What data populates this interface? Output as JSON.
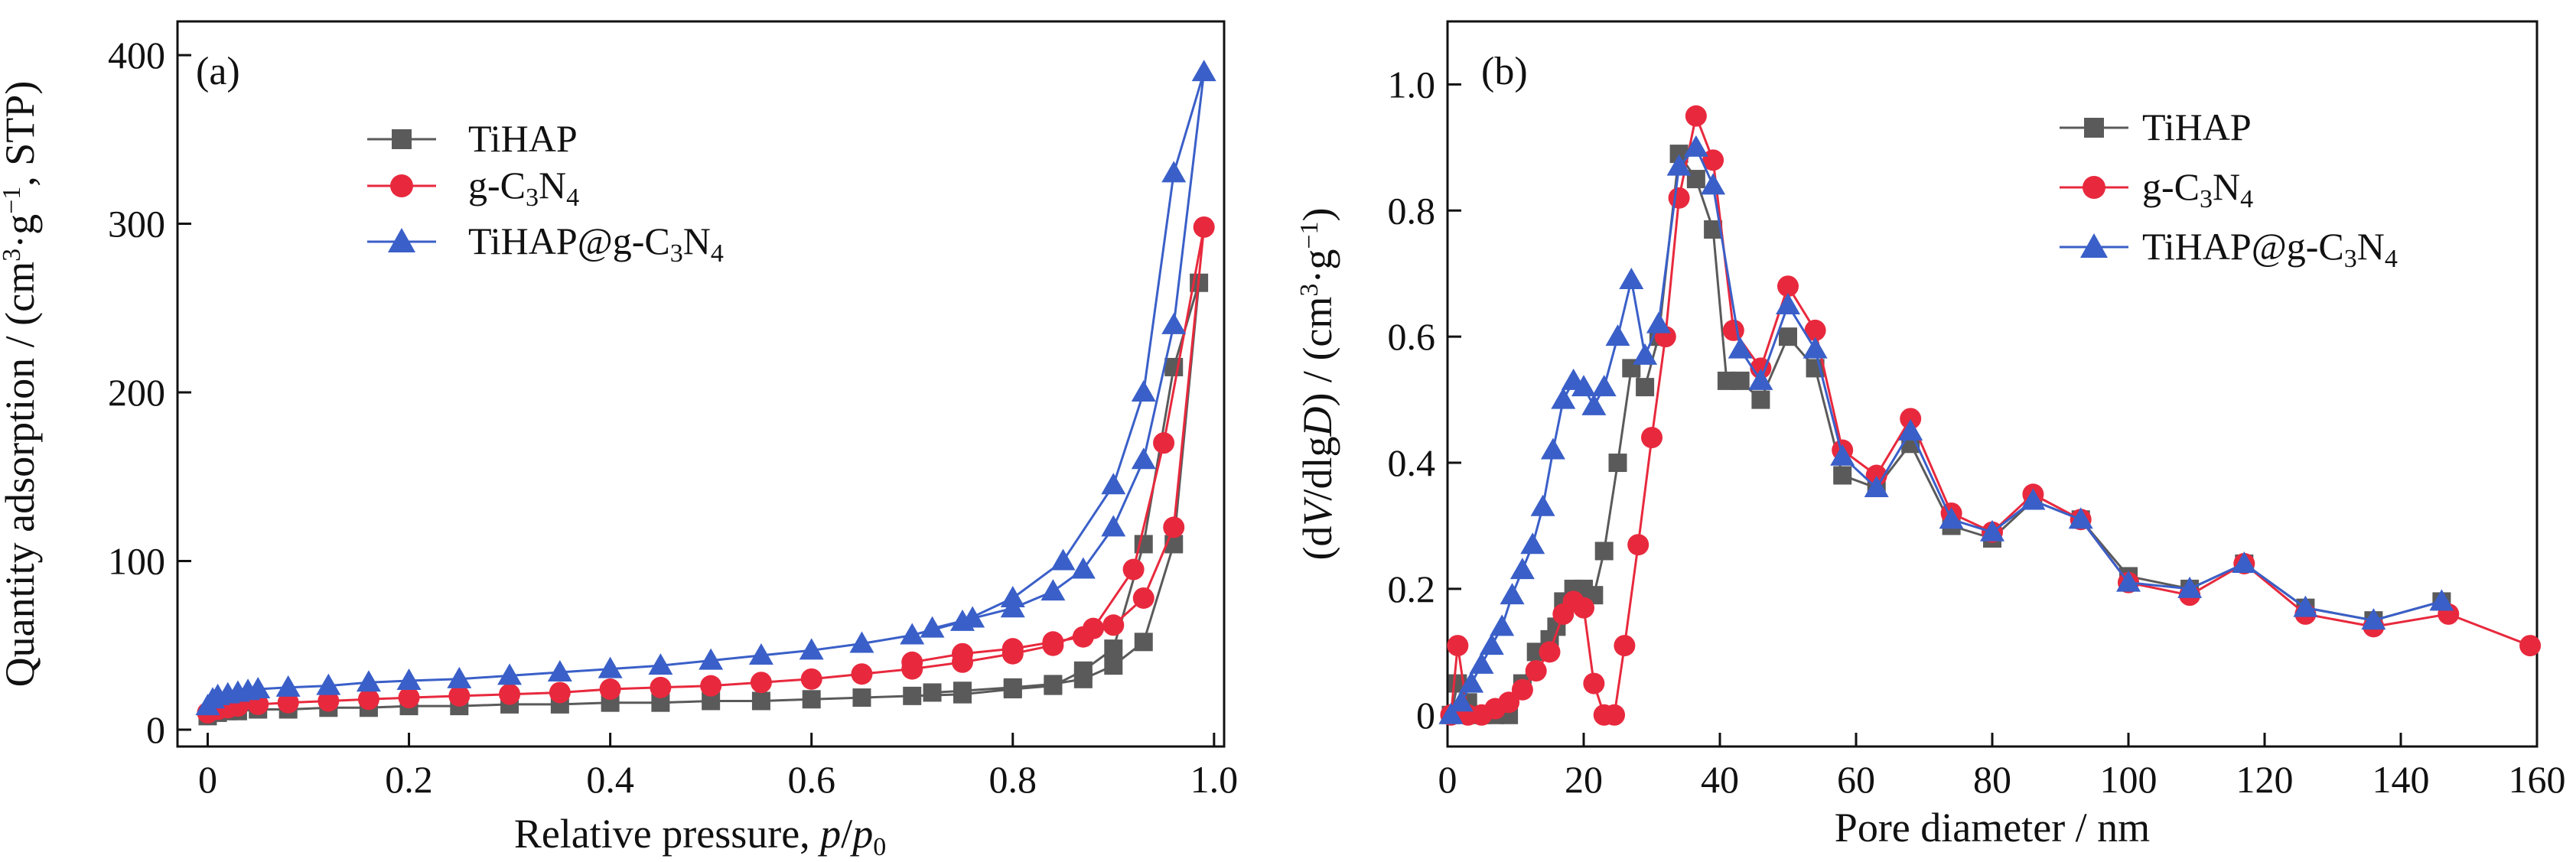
{
  "chart_data": [
    {
      "panel_label": "(a)",
      "type": "line",
      "xlabel": "Relative pressure, p/p0",
      "ylabel": "Quantity adsorption / (cm3·g−1, STP)",
      "xlim": [
        -0.03,
        1.01
      ],
      "ylim": [
        -10,
        420
      ],
      "xticks": [
        "0",
        "0.2",
        "0.4",
        "0.6",
        "0.8",
        "1.0"
      ],
      "yticks": [
        "0",
        "100",
        "200",
        "300",
        "400"
      ],
      "legend_position": "upper-left",
      "series": [
        {
          "name": "TiHAP",
          "color": "#5a5a5a",
          "marker": "square",
          "x": [
            0.0,
            0.01,
            0.02,
            0.03,
            0.05,
            0.08,
            0.12,
            0.16,
            0.2,
            0.25,
            0.3,
            0.35,
            0.4,
            0.45,
            0.5,
            0.55,
            0.6,
            0.65,
            0.7,
            0.75,
            0.8,
            0.84,
            0.87,
            0.9,
            0.93,
            0.96,
            0.985,
            0.96,
            0.93,
            0.9,
            0.87,
            0.84,
            0.8,
            0.75,
            0.72
          ],
          "y": [
            8,
            10,
            11,
            11,
            12,
            12,
            13,
            13,
            14,
            14,
            15,
            15,
            16,
            16,
            17,
            17,
            18,
            19,
            20,
            21,
            24,
            26,
            35,
            48,
            110,
            215,
            265,
            110,
            52,
            38,
            30,
            27,
            25,
            23,
            22
          ]
        },
        {
          "name": "g-C3N4",
          "color": "#e8293d",
          "marker": "circle",
          "x": [
            0.0,
            0.01,
            0.02,
            0.03,
            0.05,
            0.08,
            0.12,
            0.16,
            0.2,
            0.25,
            0.3,
            0.35,
            0.4,
            0.45,
            0.5,
            0.55,
            0.6,
            0.65,
            0.7,
            0.75,
            0.8,
            0.84,
            0.88,
            0.92,
            0.95,
            0.99,
            0.96,
            0.93,
            0.9,
            0.87,
            0.84,
            0.8,
            0.75,
            0.7
          ],
          "y": [
            10,
            12,
            13,
            14,
            15,
            16,
            17,
            18,
            19,
            20,
            21,
            22,
            24,
            25,
            26,
            28,
            30,
            33,
            36,
            40,
            45,
            50,
            60,
            95,
            170,
            298,
            120,
            78,
            62,
            55,
            52,
            48,
            45,
            40
          ]
        },
        {
          "name": "TiHAP@g-C3N4",
          "color": "#3a5fc8",
          "marker": "triangle",
          "x": [
            0.0,
            0.005,
            0.01,
            0.02,
            0.03,
            0.04,
            0.05,
            0.08,
            0.12,
            0.16,
            0.2,
            0.25,
            0.3,
            0.35,
            0.4,
            0.45,
            0.5,
            0.55,
            0.6,
            0.65,
            0.7,
            0.75,
            0.8,
            0.85,
            0.9,
            0.93,
            0.96,
            0.99,
            0.96,
            0.93,
            0.9,
            0.87,
            0.84,
            0.8,
            0.76,
            0.72
          ],
          "y": [
            14,
            18,
            20,
            21,
            22,
            23,
            24,
            25,
            26,
            28,
            29,
            30,
            32,
            34,
            36,
            38,
            41,
            44,
            47,
            51,
            56,
            64,
            78,
            100,
            145,
            200,
            330,
            390,
            240,
            160,
            120,
            95,
            82,
            72,
            66,
            60
          ]
        }
      ]
    },
    {
      "panel_label": "(b)",
      "type": "line",
      "xlabel": "Pore diameter / nm",
      "ylabel": "(dV/dlgD) / (cm3·g−1)",
      "xlim": [
        0,
        160
      ],
      "ylim": [
        -0.05,
        1.1
      ],
      "xticks": [
        "0",
        "20",
        "40",
        "60",
        "80",
        "100",
        "120",
        "140",
        "160"
      ],
      "yticks": [
        "0",
        "0.2",
        "0.4",
        "0.6",
        "0.8",
        "1.0"
      ],
      "legend_position": "upper-right",
      "series": [
        {
          "name": "TiHAP",
          "color": "#5a5a5a",
          "marker": "square",
          "x": [
            0.5,
            1.5,
            3,
            5,
            7,
            9,
            11,
            13,
            15,
            16,
            17,
            18.5,
            20,
            21.5,
            23,
            25,
            27,
            29,
            31,
            34,
            36.5,
            39,
            41,
            43,
            46,
            50,
            54,
            58,
            63,
            68,
            74,
            80,
            86,
            93,
            100,
            109,
            117,
            126,
            136,
            146
          ],
          "y": [
            0.0,
            0.05,
            0.02,
            0.0,
            0.0,
            0.0,
            0.05,
            0.1,
            0.12,
            0.14,
            0.18,
            0.2,
            0.2,
            0.19,
            0.26,
            0.4,
            0.55,
            0.52,
            0.6,
            0.89,
            0.85,
            0.77,
            0.53,
            0.53,
            0.5,
            0.6,
            0.55,
            0.38,
            0.36,
            0.43,
            0.3,
            0.28,
            0.34,
            0.31,
            0.22,
            0.2,
            0.24,
            0.17,
            0.15,
            0.18
          ]
        },
        {
          "name": "g-C3N4",
          "color": "#e8293d",
          "marker": "circle",
          "x": [
            0.5,
            1.5,
            3,
            5,
            7,
            9,
            11,
            13,
            15,
            17,
            18.5,
            20,
            21.5,
            23,
            24.5,
            26,
            28,
            30,
            32,
            34,
            36.5,
            39,
            42,
            46,
            50,
            54,
            58,
            63,
            68,
            74,
            80,
            86,
            93,
            100,
            109,
            117,
            126,
            136,
            147,
            159
          ],
          "y": [
            0.0,
            0.11,
            0.0,
            0.0,
            0.01,
            0.02,
            0.04,
            0.07,
            0.1,
            0.16,
            0.18,
            0.17,
            0.05,
            0.0,
            0.0,
            0.11,
            0.27,
            0.44,
            0.6,
            0.82,
            0.95,
            0.88,
            0.61,
            0.55,
            0.68,
            0.61,
            0.42,
            0.38,
            0.47,
            0.32,
            0.29,
            0.35,
            0.31,
            0.21,
            0.19,
            0.24,
            0.16,
            0.14,
            0.16,
            0.11
          ]
        },
        {
          "name": "TiHAP@g-C3N4",
          "color": "#3a5fc8",
          "marker": "triangle",
          "x": [
            0.5,
            2,
            3.5,
            5,
            6.5,
            8,
            9.5,
            11,
            12.5,
            14,
            15.5,
            17,
            18.5,
            20,
            21.5,
            23,
            25,
            27,
            29,
            31,
            34,
            36.5,
            39,
            43,
            46,
            50,
            54,
            58,
            63,
            68,
            74,
            80,
            86,
            93,
            100,
            109,
            117,
            126,
            136,
            146
          ],
          "y": [
            0.0,
            0.02,
            0.05,
            0.08,
            0.11,
            0.14,
            0.19,
            0.23,
            0.27,
            0.33,
            0.42,
            0.5,
            0.53,
            0.52,
            0.49,
            0.52,
            0.6,
            0.69,
            0.57,
            0.62,
            0.87,
            0.9,
            0.84,
            0.58,
            0.53,
            0.65,
            0.58,
            0.41,
            0.36,
            0.45,
            0.31,
            0.29,
            0.34,
            0.31,
            0.21,
            0.2,
            0.24,
            0.17,
            0.15,
            0.18
          ]
        }
      ]
    }
  ]
}
